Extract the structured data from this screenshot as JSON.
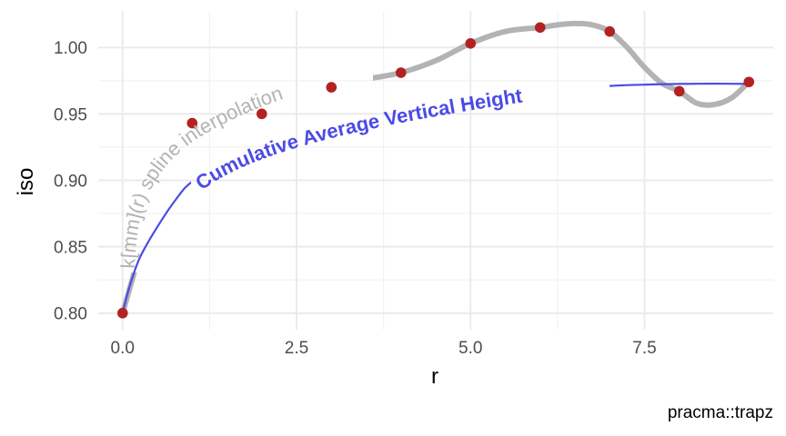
{
  "chart_data": {
    "type": "scatter",
    "title": "",
    "xlabel": "r",
    "ylabel": "iso",
    "caption": "pracma::trapz",
    "xlim": [
      -0.35,
      9.35
    ],
    "ylim": [
      0.7875,
      1.0275
    ],
    "grid": true,
    "x_ticks": [
      0,
      2.5,
      5,
      7.5
    ],
    "x_tick_labels": [
      "0.0",
      "2.5",
      "5.0",
      "7.5"
    ],
    "y_ticks": [
      0.8,
      0.85,
      0.9,
      0.95,
      1.0
    ],
    "y_tick_labels": [
      "0.80",
      "0.85",
      "0.90",
      "0.95",
      "1.00"
    ],
    "points": {
      "x": [
        0,
        1,
        2,
        3,
        4,
        5,
        6,
        7,
        8,
        9
      ],
      "y": [
        0.8,
        0.943,
        0.95,
        0.97,
        0.981,
        1.003,
        1.015,
        1.012,
        0.967,
        0.974
      ],
      "color": "#B22222"
    },
    "spline_curve": {
      "label": "k[mm](r) spline interpolation",
      "color": "#b3b3b3",
      "x": [
        0,
        0.25,
        0.5,
        0.75,
        1,
        1.5,
        2,
        2.5,
        3,
        3.5,
        4,
        4.5,
        5,
        5.5,
        6,
        6.25,
        6.5,
        6.75,
        7,
        7.25,
        7.5,
        7.75,
        8,
        8.25,
        8.5,
        8.75,
        9
      ],
      "y": [
        0.8,
        0.845,
        0.885,
        0.918,
        0.943,
        0.95,
        0.95,
        0.958,
        0.97,
        0.976,
        0.981,
        0.99,
        1.003,
        1.012,
        1.015,
        1.017,
        1.018,
        1.017,
        1.012,
        1.0,
        0.985,
        0.973,
        0.967,
        0.958,
        0.957,
        0.962,
        0.974
      ]
    },
    "cumulative_curve": {
      "label": "Cumulative Average Vertical Height",
      "color": "#4B4BE6",
      "x": [
        0,
        0.1,
        0.25,
        0.5,
        0.8,
        1,
        1.5,
        2,
        3,
        4,
        5,
        6,
        7,
        7.5,
        8,
        8.5,
        9
      ],
      "y": [
        0.8,
        0.82,
        0.842,
        0.865,
        0.888,
        0.899,
        0.917,
        0.93,
        0.946,
        0.957,
        0.964,
        0.968,
        0.971,
        0.972,
        0.9725,
        0.9727,
        0.9725
      ]
    }
  }
}
